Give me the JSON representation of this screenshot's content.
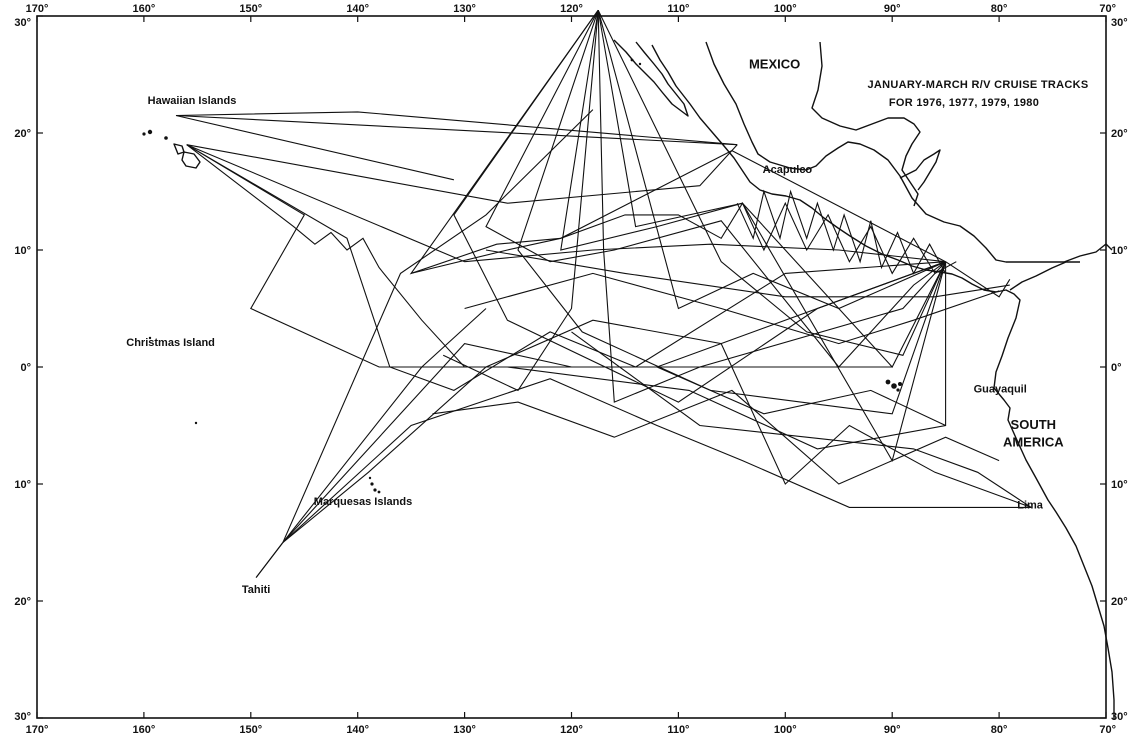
{
  "title": {
    "line1": "JANUARY-MARCH R/V CRUISE TRACKS",
    "line2": "FOR 1976, 1977, 1979, 1980"
  },
  "longitude_labels": [
    "170°",
    "160°",
    "150°",
    "140°",
    "130°",
    "120°",
    "110°",
    "100°",
    "90°",
    "80°",
    "70°"
  ],
  "longitude_values": [
    -170,
    -160,
    -150,
    -140,
    -130,
    -120,
    -110,
    -100,
    -90,
    -80,
    -70
  ],
  "latitude_left_labels": [
    "30°",
    "20°",
    "10°",
    "0°",
    "10°",
    "20°",
    "30°"
  ],
  "latitude_right_labels": [
    "30°",
    "20°",
    "10°",
    "0°",
    "10°",
    "20°",
    "30°"
  ],
  "latitude_values": [
    30,
    20,
    10,
    0,
    -10,
    -20,
    -30
  ],
  "extent": {
    "lon": [
      -170,
      -70
    ],
    "lat": [
      -30,
      30
    ]
  },
  "places": [
    {
      "name": "Hawaiian Islands",
      "lon": -155.5,
      "lat": 22.5
    },
    {
      "name": "Christmas Island",
      "lon": -157.5,
      "lat": 1.8
    },
    {
      "name": "Marquesas Islands",
      "lon": -139.5,
      "lat": -11.8
    },
    {
      "name": "Tahiti",
      "lon": -149.5,
      "lat": -19.3
    },
    {
      "name": "Acapulco",
      "lon": -99.8,
      "lat": 16.6
    },
    {
      "name": "Guayaquil",
      "lon": -79.9,
      "lat": -2.2
    },
    {
      "name": "Lima",
      "lon": -77.1,
      "lat": -12.1
    },
    {
      "name": "MEXICO",
      "lon": -101,
      "lat": 25.5,
      "big": true
    },
    {
      "name": "SOUTH",
      "lon": -76.8,
      "lat": -5.3,
      "big": true
    },
    {
      "name": "AMERICA",
      "lon": -76.8,
      "lat": -6.8,
      "big": true
    }
  ],
  "tracks": [
    [
      [
        -157,
        21.5
      ],
      [
        -140,
        21.8
      ],
      [
        -104.5,
        19
      ]
    ],
    [
      [
        -157,
        21.5
      ],
      [
        -104.5,
        19
      ]
    ],
    [
      [
        -157,
        21.5
      ],
      [
        -131,
        16
      ]
    ],
    [
      [
        -156,
        19
      ],
      [
        -138,
        16
      ],
      [
        -126,
        14
      ],
      [
        -108,
        15.5
      ],
      [
        -104.5,
        19
      ]
    ],
    [
      [
        -156,
        19
      ],
      [
        -146,
        12
      ],
      [
        -144,
        10.5
      ],
      [
        -142.5,
        11.5
      ],
      [
        -141,
        10
      ],
      [
        -139.5,
        11
      ],
      [
        -138,
        8.5
      ],
      [
        -134,
        4
      ],
      [
        -130,
        0
      ],
      [
        -112,
        0
      ],
      [
        -85,
        9
      ]
    ],
    [
      [
        -156,
        19
      ],
      [
        -141,
        11
      ],
      [
        -137,
        0
      ],
      [
        -131,
        -2
      ],
      [
        -122,
        3
      ],
      [
        -114,
        0
      ],
      [
        -100,
        8
      ],
      [
        -85,
        9
      ]
    ],
    [
      [
        -156,
        19
      ],
      [
        -145,
        13
      ],
      [
        -150,
        5
      ],
      [
        -138,
        0
      ],
      [
        -126,
        0
      ],
      [
        -109,
        -2
      ],
      [
        -97,
        -7
      ],
      [
        -85,
        -5
      ],
      [
        -85,
        9
      ]
    ],
    [
      [
        -156,
        19
      ],
      [
        -130,
        9
      ],
      [
        -118,
        10
      ],
      [
        -107,
        10.5
      ],
      [
        -95,
        10
      ],
      [
        -85,
        9
      ]
    ],
    [
      [
        -117.5,
        34
      ],
      [
        -135,
        8
      ],
      [
        -127,
        10.5
      ],
      [
        -121,
        11
      ],
      [
        -105,
        18.5
      ],
      [
        -85,
        9
      ]
    ],
    [
      [
        -117.5,
        34
      ],
      [
        -131,
        13
      ],
      [
        -126,
        4
      ],
      [
        -110,
        -3
      ],
      [
        -97,
        5
      ],
      [
        -85,
        9
      ]
    ],
    [
      [
        -117.5,
        34
      ],
      [
        -128,
        12
      ],
      [
        -122,
        9
      ],
      [
        -116,
        10
      ],
      [
        -106,
        12.5
      ],
      [
        -95,
        0
      ],
      [
        -88,
        7
      ],
      [
        -85,
        9
      ]
    ],
    [
      [
        -117.5,
        34
      ],
      [
        -125,
        10
      ],
      [
        -119,
        3
      ],
      [
        -107,
        -2
      ],
      [
        -90,
        -4
      ],
      [
        -85,
        9
      ]
    ],
    [
      [
        -117.5,
        34
      ],
      [
        -121,
        10
      ],
      [
        -112,
        12
      ],
      [
        -104,
        14
      ],
      [
        -90,
        -8
      ],
      [
        -85,
        9
      ]
    ],
    [
      [
        -117.5,
        34
      ],
      [
        -117,
        10
      ],
      [
        -116,
        -3
      ],
      [
        -108,
        0
      ],
      [
        -89,
        5
      ],
      [
        -85,
        9
      ]
    ],
    [
      [
        -117.5,
        34
      ],
      [
        -114,
        12
      ],
      [
        -104,
        14
      ],
      [
        -100,
        10
      ],
      [
        -90,
        0
      ],
      [
        -85,
        9
      ]
    ],
    [
      [
        -117.5,
        34
      ],
      [
        -110,
        5
      ],
      [
        -103,
        8
      ],
      [
        -95,
        5
      ],
      [
        -85,
        9
      ]
    ],
    [
      [
        -117.5,
        34
      ],
      [
        -106,
        9
      ],
      [
        -98,
        3
      ],
      [
        -89,
        1
      ],
      [
        -85,
        9
      ]
    ],
    [
      [
        -117.5,
        34
      ],
      [
        -120,
        5
      ],
      [
        -125,
        -2
      ],
      [
        -132,
        1
      ]
    ],
    [
      [
        -149.5,
        -18
      ],
      [
        -147,
        -15
      ],
      [
        -134,
        0
      ],
      [
        -128,
        5
      ]
    ],
    [
      [
        -149.5,
        -18
      ],
      [
        -147,
        -15
      ],
      [
        -136,
        8
      ],
      [
        -128,
        13
      ],
      [
        -118,
        22
      ]
    ],
    [
      [
        -147,
        -15
      ],
      [
        -139,
        -9
      ],
      [
        -128,
        0
      ],
      [
        -118,
        4
      ],
      [
        -106,
        2
      ],
      [
        -100,
        -10
      ],
      [
        -94,
        -5
      ],
      [
        -86,
        -9
      ],
      [
        -77,
        -12
      ]
    ],
    [
      [
        -147,
        -15
      ],
      [
        -140,
        -8
      ],
      [
        -130,
        2
      ],
      [
        -120,
        0
      ],
      [
        -110,
        0
      ],
      [
        -100,
        0
      ],
      [
        -90,
        0
      ]
    ],
    [
      [
        -147,
        -15
      ],
      [
        -135,
        -5
      ],
      [
        -122,
        -1
      ],
      [
        -112,
        -5
      ],
      [
        -104,
        -8
      ],
      [
        -94,
        -12
      ],
      [
        -77,
        -12
      ]
    ],
    [
      [
        -135,
        8
      ],
      [
        -126,
        10
      ],
      [
        -121,
        11
      ],
      [
        -115,
        13
      ],
      [
        -110,
        13
      ],
      [
        -106,
        11
      ],
      [
        -104,
        14
      ],
      [
        -102,
        10
      ],
      [
        -100,
        14
      ],
      [
        -98,
        10
      ],
      [
        -96,
        13
      ],
      [
        -94,
        9
      ],
      [
        -92,
        12
      ],
      [
        -90,
        8
      ],
      [
        -88,
        11
      ],
      [
        -86,
        8
      ],
      [
        -84,
        9
      ]
    ],
    [
      [
        -104.5,
        14
      ],
      [
        -103,
        11
      ],
      [
        -102,
        15
      ],
      [
        -100.5,
        11
      ],
      [
        -99.5,
        15
      ],
      [
        -98,
        11
      ],
      [
        -97,
        14
      ],
      [
        -95.5,
        10
      ],
      [
        -94.5,
        13
      ],
      [
        -93,
        9
      ],
      [
        -92,
        12.5
      ],
      [
        -91,
        8.5
      ],
      [
        -89.5,
        11.5
      ],
      [
        -88,
        8
      ],
      [
        -86.5,
        10.5
      ],
      [
        -85,
        8
      ]
    ],
    [
      [
        -130,
        5
      ],
      [
        -118,
        8
      ],
      [
        -106,
        5
      ],
      [
        -95,
        2
      ],
      [
        -88,
        4
      ],
      [
        -80,
        6.5
      ]
    ],
    [
      [
        -128,
        10
      ],
      [
        -115,
        8
      ],
      [
        -100,
        6
      ],
      [
        -86,
        6
      ],
      [
        -79,
        7
      ]
    ],
    [
      [
        -120,
        3
      ],
      [
        -108,
        -5
      ],
      [
        -98,
        -6
      ],
      [
        -88,
        -7
      ],
      [
        -82,
        -9
      ],
      [
        -77,
        -12
      ]
    ],
    [
      [
        -133,
        -4
      ],
      [
        -125,
        -3
      ],
      [
        -116,
        -6
      ],
      [
        -105,
        -2
      ],
      [
        -95,
        -10
      ],
      [
        -85,
        -6
      ],
      [
        -80,
        -8
      ]
    ],
    [
      [
        -85,
        9
      ],
      [
        -80,
        6
      ],
      [
        -79,
        7.5
      ]
    ],
    [
      [
        -112,
        0
      ],
      [
        -102,
        -4
      ],
      [
        -92,
        -2
      ],
      [
        -85,
        -5
      ]
    ]
  ]
}
